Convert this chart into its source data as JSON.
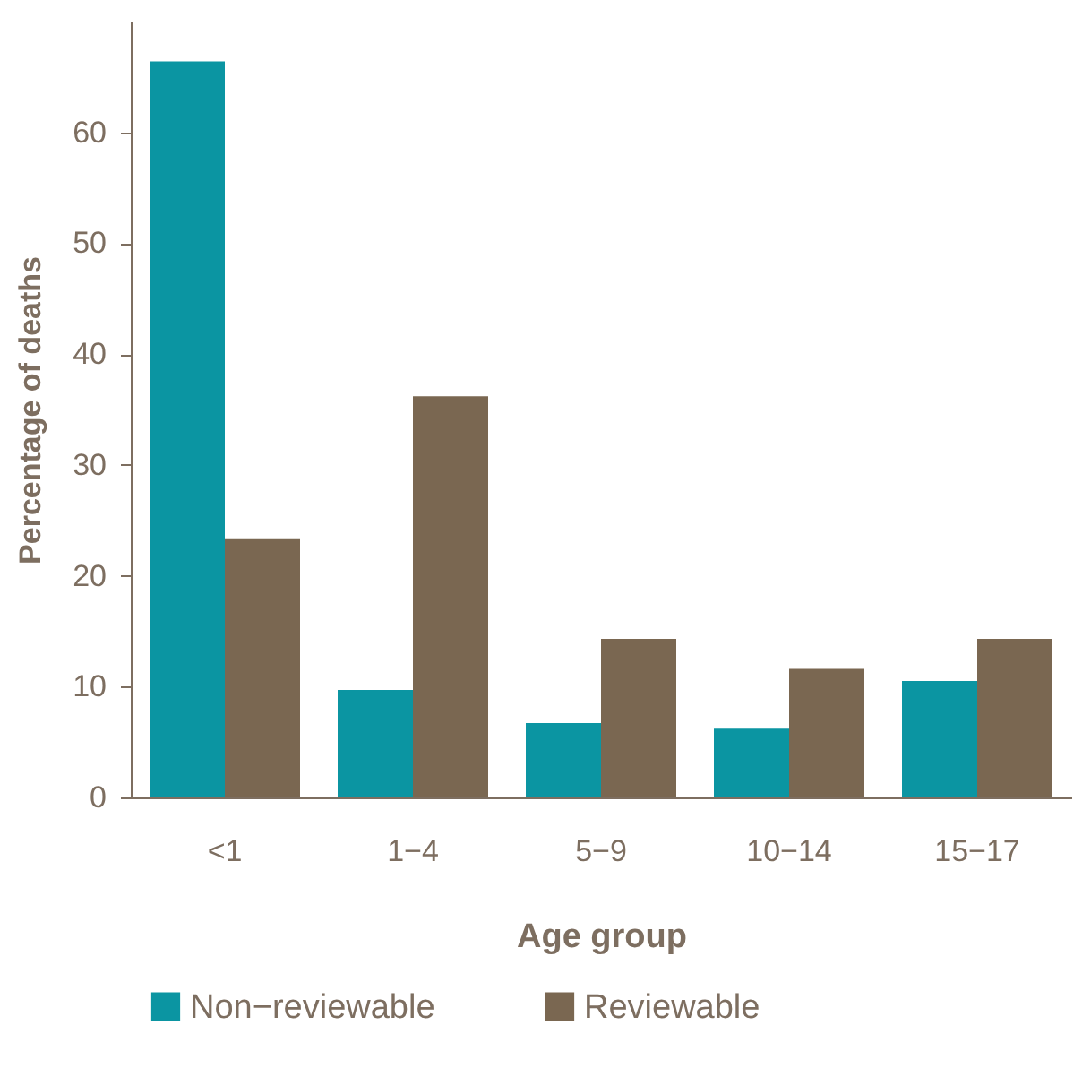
{
  "chart_data": {
    "type": "bar",
    "xlabel": "Age group",
    "ylabel": "Percentage of deaths",
    "categories": [
      "<1",
      "1−4",
      "5−9",
      "10−14",
      "15−17"
    ],
    "series": [
      {
        "name": "Non−reviewable",
        "color": "#0b95a2",
        "values": [
          66.4,
          9.7,
          6.7,
          6.2,
          10.5
        ]
      },
      {
        "name": "Reviewable",
        "color": "#7a6751",
        "values": [
          23.3,
          36.2,
          14.3,
          11.6,
          14.3
        ]
      }
    ],
    "ylim": [
      0,
      70
    ],
    "yticks": [
      0,
      10,
      20,
      30,
      40,
      50,
      60
    ],
    "grid": false,
    "legend": "bottom"
  }
}
